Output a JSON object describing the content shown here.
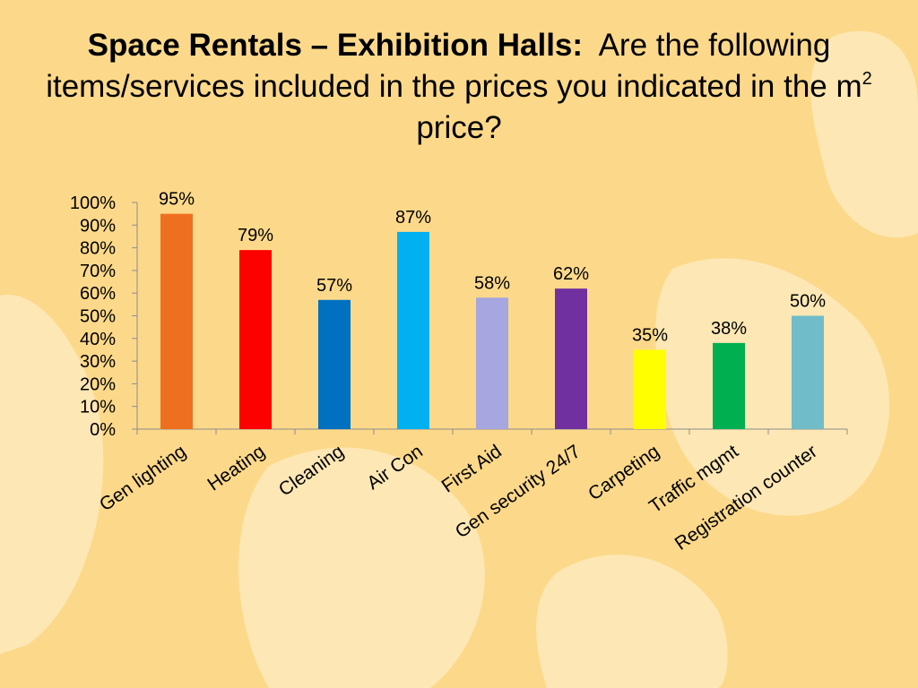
{
  "slide": {
    "title_bold": "Space Rentals – Exhibition Halls:",
    "title_rest_1": "Are the following items/services included in the prices you indicated in the m",
    "title_sup": "2",
    "title_rest_2": " price?"
  },
  "colors": {
    "background": "#fcd98a",
    "background_blob": "#fde7b4",
    "axis": "#8c8c8c"
  },
  "chart_data": {
    "type": "bar",
    "title": "",
    "xlabel": "",
    "ylabel": "",
    "ylim": [
      0,
      100
    ],
    "yticks": [
      "0%",
      "10%",
      "20%",
      "30%",
      "40%",
      "50%",
      "60%",
      "70%",
      "80%",
      "90%",
      "100%"
    ],
    "grid": false,
    "legend": "none",
    "categories": [
      "Gen lighting",
      "Heating",
      "Cleaning",
      "Air Con",
      "First Aid",
      "Gen security 24/7",
      "Carpeting",
      "Traffic mgmt",
      "Registration counter"
    ],
    "values": [
      95,
      79,
      57,
      87,
      58,
      62,
      35,
      38,
      50
    ],
    "data_labels": [
      "95%",
      "79%",
      "57%",
      "87%",
      "58%",
      "62%",
      "35%",
      "38%",
      "50%"
    ],
    "bar_colors": [
      "#ef6f21",
      "#ff0000",
      "#0070c0",
      "#00b0f0",
      "#a6a6e0",
      "#7030a0",
      "#ffff00",
      "#00b050",
      "#70bcc8"
    ]
  }
}
